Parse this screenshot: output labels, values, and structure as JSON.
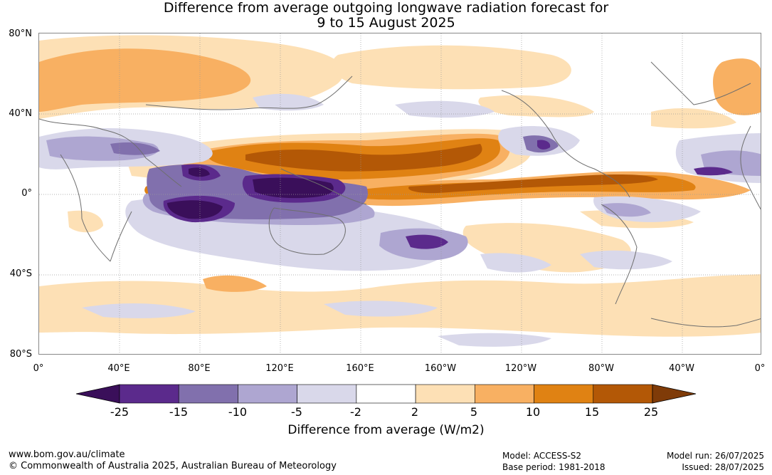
{
  "title": {
    "line1": "Difference from average outgoing longwave radiation forecast for",
    "line2": "9 to 15 August 2025"
  },
  "lat_labels": [
    "80°N",
    "40°N",
    "0°",
    "40°S",
    "80°S"
  ],
  "lon_labels": [
    "0°",
    "40°E",
    "80°E",
    "120°E",
    "160°E",
    "160°W",
    "120°W",
    "80°W",
    "40°W",
    "0°"
  ],
  "colorbar": {
    "title": "Difference from average (W/m2)",
    "tick_labels": [
      "-25",
      "-15",
      "-10",
      "-5",
      "-2",
      "2",
      "5",
      "10",
      "15",
      "25"
    ],
    "colors": [
      "#3a0f5a",
      "#5b2a8c",
      "#8170ad",
      "#aea6d1",
      "#d9d8ea",
      "#ffffff",
      "#fde0b5",
      "#f8b062",
      "#e08213",
      "#b35806",
      "#7f3b08"
    ]
  },
  "footer": {
    "website": "www.bom.gov.au/climate",
    "copyright": "© Commonwealth of Australia 2025, Australian Bureau of Meteorology",
    "model": "Model: ACCESS-S2",
    "base_period": "Base period: 1981-2018",
    "model_run": "Model run: 26/07/2025",
    "issued": "Issued: 28/07/2025"
  }
}
